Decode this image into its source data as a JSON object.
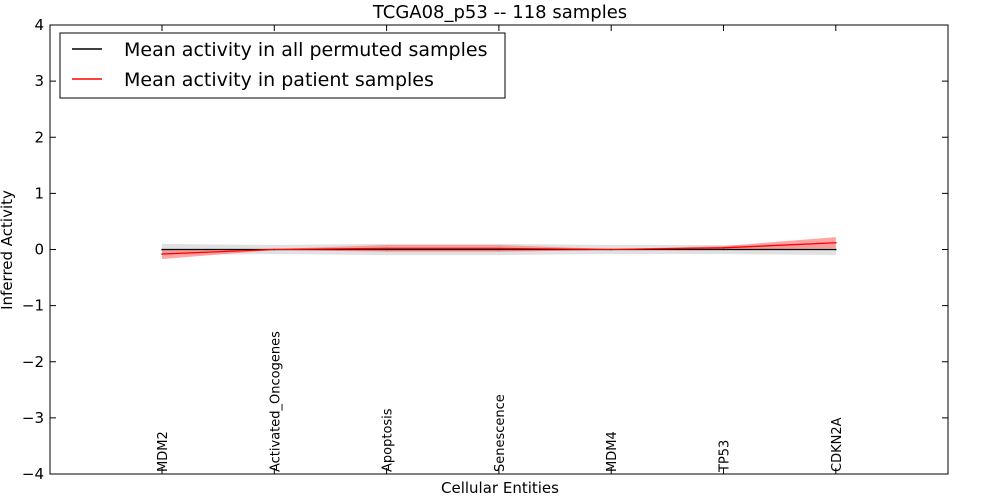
{
  "chart_data": {
    "type": "line",
    "title": "TCGA08_p53 -- 118 samples",
    "xlabel": "Cellular Entities",
    "ylabel": "Inferred Activity",
    "ylim": [
      -4,
      4
    ],
    "yticks": [
      "−4",
      "−3",
      "−2",
      "−1",
      "0",
      "1",
      "2",
      "3",
      "4"
    ],
    "categories": [
      "MDM2",
      "Activated_Oncogenes",
      "Apoptosis",
      "Senescence",
      "MDM4",
      "TP53",
      "CDKN2A"
    ],
    "grid": false,
    "legend_position": "top-left",
    "series": [
      {
        "name": "Mean activity in all permuted samples",
        "color": "#000000",
        "band_color": "#c8c8c8",
        "values": [
          0.0,
          0.0,
          0.0,
          0.0,
          0.0,
          0.0,
          0.0
        ],
        "lower": [
          -0.1,
          -0.08,
          -0.1,
          -0.1,
          -0.08,
          -0.08,
          -0.1
        ],
        "upper": [
          0.1,
          0.08,
          0.1,
          0.1,
          0.08,
          0.08,
          0.1
        ]
      },
      {
        "name": "Mean activity in patient samples",
        "color": "#ff0000",
        "band_color": "#ff7f7f",
        "values": [
          -0.08,
          0.0,
          0.02,
          0.02,
          0.0,
          0.03,
          0.12
        ],
        "lower": [
          -0.17,
          -0.01,
          -0.04,
          -0.04,
          -0.01,
          0.0,
          0.02
        ],
        "upper": [
          0.0,
          0.01,
          0.08,
          0.08,
          0.01,
          0.06,
          0.22
        ]
      }
    ]
  }
}
